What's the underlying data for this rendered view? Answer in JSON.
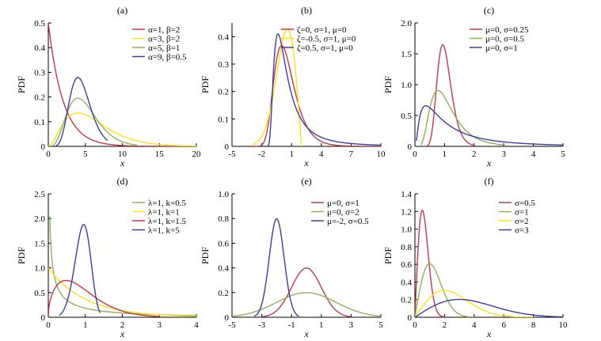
{
  "figure": {
    "ylabel": "PDF",
    "xlabel": "x"
  },
  "chart_data": [
    {
      "panel": "(a)",
      "type": "line",
      "xlabel": "x",
      "ylabel": "PDF",
      "xlim": [
        0,
        20
      ],
      "ylim": [
        0,
        0.5
      ],
      "xticks": [
        "0",
        "5",
        "10",
        "15",
        "20"
      ],
      "yticks": [
        "0",
        "0.1",
        "0.2",
        "0.3",
        "0.4",
        "0.5"
      ],
      "legend_position": "top-right",
      "series": [
        {
          "name": "α=1, β=2",
          "color": "#c0394b",
          "dist": "gamma",
          "params": [
            1,
            2
          ],
          "x": [
            0,
            1,
            2,
            4,
            6,
            8,
            10,
            15,
            20
          ],
          "y": [
            0.5,
            0.303,
            0.184,
            0.068,
            0.025,
            0.009,
            0.003,
            0.0003,
            2e-05
          ]
        },
        {
          "name": "α=3, β=2",
          "color": "#ffe01a",
          "dist": "gamma",
          "params": [
            3,
            2
          ],
          "x": [
            0,
            2,
            4,
            6,
            8,
            10,
            12,
            15,
            20
          ],
          "y": [
            0,
            0.092,
            0.135,
            0.112,
            0.073,
            0.042,
            0.022,
            0.008,
            0.001
          ]
        },
        {
          "name": "α=5, β=1",
          "color": "#8bb35a",
          "dist": "gamma",
          "params": [
            5,
            1
          ],
          "x": [
            0,
            1,
            2,
            3,
            4,
            5,
            6,
            8,
            10,
            12
          ],
          "y": [
            0,
            0.015,
            0.09,
            0.168,
            0.195,
            0.175,
            0.134,
            0.057,
            0.019,
            0.005
          ]
        },
        {
          "name": "α=9, β=0.5",
          "color": "#3b3f9e",
          "dist": "gamma",
          "params": [
            9,
            0.5
          ],
          "x": [
            1,
            2,
            3,
            4,
            5,
            6,
            7,
            8
          ],
          "y": [
            0.001,
            0.042,
            0.189,
            0.279,
            0.219,
            0.107,
            0.038,
            0.011
          ]
        }
      ]
    },
    {
      "panel": "(b)",
      "type": "line",
      "xlabel": "x",
      "ylabel": "PDF",
      "xlim": [
        -5,
        10
      ],
      "ylim": [
        0,
        0.45
      ],
      "xticks": [
        "-5",
        "-2",
        "1",
        "4",
        "7",
        "10"
      ],
      "yticks": [
        "0",
        "0.1",
        "0.2",
        "0.3",
        "0.4"
      ],
      "legend_position": "top-right",
      "series": [
        {
          "name": "ζ=0, σ=1, μ=0",
          "color": "#c0394b",
          "dist": "gev",
          "params": [
            0,
            1,
            0
          ],
          "x": [
            -3,
            -2,
            -1,
            0,
            1,
            2,
            4,
            7,
            10
          ],
          "y": [
            0,
            0.005,
            0.179,
            0.368,
            0.255,
            0.118,
            0.018,
            0.001,
            5e-05
          ]
        },
        {
          "name": "ζ=-0.5, σ=1, μ=0",
          "color": "#ffe01a",
          "dist": "gev",
          "params": [
            -0.5,
            1,
            0
          ],
          "x": [
            -3,
            -2,
            -1,
            0,
            0.5,
            1,
            1.5,
            1.9,
            2
          ],
          "y": [
            0.003,
            0.054,
            0.25,
            0.368,
            0.42,
            0.389,
            0.235,
            0.033,
            0
          ]
        },
        {
          "name": "ζ=0.5, σ=1, μ=0",
          "color": "#3b3f9e",
          "dist": "gev",
          "params": [
            0.5,
            1,
            0
          ],
          "x": [
            -2,
            -1.5,
            -1,
            -0.5,
            0,
            1,
            2,
            4,
            7,
            10
          ],
          "y": [
            0,
            0.001,
            0.147,
            0.41,
            0.368,
            0.178,
            0.088,
            0.028,
            0.008,
            0.003
          ]
        }
      ]
    },
    {
      "panel": "(c)",
      "type": "line",
      "xlabel": "x",
      "ylabel": "PDF",
      "xlim": [
        0,
        5
      ],
      "ylim": [
        0,
        2.0
      ],
      "xticks": [
        "0",
        "1",
        "2",
        "3",
        "4",
        "5"
      ],
      "yticks": [
        "0",
        "0.5",
        "1.0",
        "1.5",
        "2.0"
      ],
      "legend_position": "top-right",
      "series": [
        {
          "name": "μ=0, σ=0.25",
          "color": "#c0394b",
          "dist": "lognormal",
          "params": [
            0,
            0.25
          ],
          "x": [
            0.4,
            0.6,
            0.8,
            0.94,
            1.0,
            1.2,
            1.4,
            1.6,
            2.0
          ],
          "y": [
            0.001,
            0.228,
            1.233,
            1.648,
            1.596,
            0.888,
            0.352,
            0.122,
            0.009
          ]
        },
        {
          "name": "μ=0, σ=0.5",
          "color": "#8bb35a",
          "dist": "lognormal",
          "params": [
            0,
            0.5
          ],
          "x": [
            0.2,
            0.4,
            0.6,
            0.78,
            1.0,
            1.5,
            2.0,
            2.5,
            3.0
          ],
          "y": [
            0.066,
            0.561,
            0.883,
            0.908,
            0.798,
            0.386,
            0.154,
            0.057,
            0.021
          ]
        },
        {
          "name": "μ=0, σ=1",
          "color": "#3b3f9e",
          "dist": "lognormal",
          "params": [
            0,
            1
          ],
          "x": [
            0.05,
            0.1,
            0.2,
            0.37,
            0.6,
            1.0,
            1.5,
            2.0,
            3.0,
            4.0,
            5.0
          ],
          "y": [
            0.072,
            0.28,
            0.546,
            0.657,
            0.585,
            0.399,
            0.245,
            0.157,
            0.073,
            0.038,
            0.022
          ]
        }
      ]
    },
    {
      "panel": "(d)",
      "type": "line",
      "xlabel": "x",
      "ylabel": "PDF",
      "xlim": [
        0,
        4
      ],
      "ylim": [
        0,
        2.5
      ],
      "xticks": [
        "0",
        "1",
        "2",
        "3",
        "4"
      ],
      "yticks": [
        "0",
        "0.5",
        "1.0",
        "1.5",
        "2.0",
        "2.5"
      ],
      "legend_position": "top-right",
      "series": [
        {
          "name": "λ=1, k=0.5",
          "color": "#8bb35a",
          "dist": "weibull",
          "params": [
            1,
            0.5
          ],
          "x": [
            0.04,
            0.1,
            0.2,
            0.5,
            1,
            2,
            3,
            4
          ],
          "y": [
            2.04,
            1.15,
            0.71,
            0.35,
            0.18,
            0.086,
            0.051,
            0.034
          ]
        },
        {
          "name": "λ=1, k=1",
          "color": "#ffe01a",
          "dist": "weibull",
          "params": [
            1,
            1
          ],
          "x": [
            0,
            0.5,
            1,
            2,
            3,
            4
          ],
          "y": [
            1.0,
            0.607,
            0.368,
            0.135,
            0.05,
            0.018
          ]
        },
        {
          "name": "λ=1, k=1.5",
          "color": "#c0394b",
          "dist": "weibull",
          "params": [
            1,
            1.5
          ],
          "x": [
            0,
            0.2,
            0.5,
            1,
            1.5,
            2,
            2.5,
            3
          ],
          "y": [
            0,
            0.615,
            0.744,
            0.552,
            0.29,
            0.124,
            0.045,
            0.014
          ]
        },
        {
          "name": "λ=1, k=5",
          "color": "#3b3f9e",
          "dist": "weibull",
          "params": [
            1,
            5
          ],
          "x": [
            0.3,
            0.5,
            0.7,
            0.9,
            0.97,
            1.0,
            1.1,
            1.2,
            1.3,
            1.4
          ],
          "y": [
            0.04,
            0.3,
            1.0,
            1.7,
            1.86,
            1.84,
            1.36,
            0.59,
            0.1,
            0.004
          ]
        }
      ]
    },
    {
      "panel": "(e)",
      "type": "line",
      "xlabel": "x",
      "ylabel": "PDF",
      "xlim": [
        -5,
        5
      ],
      "ylim": [
        0,
        1.0
      ],
      "xticks": [
        "-5",
        "-3",
        "-1",
        "1",
        "3",
        "5"
      ],
      "yticks": [
        "0",
        "0.2",
        "0.4",
        "0.6",
        "0.8",
        "1.0"
      ],
      "legend_position": "top-right",
      "series": [
        {
          "name": "μ=0, σ=1",
          "color": "#c0394b",
          "dist": "normal",
          "params": [
            0,
            1
          ],
          "x": [
            -3,
            -2,
            -1,
            0,
            1,
            2,
            3
          ],
          "y": [
            0.004,
            0.054,
            0.242,
            0.399,
            0.242,
            0.054,
            0.004
          ]
        },
        {
          "name": "μ=0, σ=2",
          "color": "#8bb35a",
          "dist": "normal",
          "params": [
            0,
            2
          ],
          "x": [
            -5,
            -3,
            -1,
            0,
            1,
            3,
            5
          ],
          "y": [
            0.009,
            0.065,
            0.176,
            0.199,
            0.176,
            0.065,
            0.009
          ]
        },
        {
          "name": "μ=-2, σ=0.5",
          "color": "#3b3f9e",
          "dist": "normal",
          "params": [
            -2,
            0.5
          ],
          "x": [
            -3.5,
            -3,
            -2.5,
            -2,
            -1.5,
            -1,
            -0.5
          ],
          "y": [
            0.009,
            0.108,
            0.484,
            0.798,
            0.484,
            0.108,
            0.009
          ]
        }
      ]
    },
    {
      "panel": "(f)",
      "type": "line",
      "xlabel": "x",
      "ylabel": "PDF",
      "xlim": [
        0,
        10
      ],
      "ylim": [
        0,
        1.4
      ],
      "xticks": [
        "0",
        "2",
        "4",
        "6",
        "8",
        "10"
      ],
      "yticks": [
        "0",
        "0.2",
        "0.4",
        "0.6",
        "0.8",
        "1.0",
        "1.2",
        "1.4"
      ],
      "legend_position": "top-right",
      "series": [
        {
          "name": "σ=0.5",
          "color": "#c0394b",
          "dist": "rayleigh",
          "params": [
            0.5
          ],
          "x": [
            0,
            0.25,
            0.5,
            0.75,
            1.0,
            1.5,
            2.0
          ],
          "y": [
            0,
            0.882,
            1.213,
            0.974,
            0.541,
            0.067,
            0.003
          ]
        },
        {
          "name": "σ=1",
          "color": "#8bb35a",
          "dist": "rayleigh",
          "params": [
            1
          ],
          "x": [
            0,
            0.5,
            1,
            1.5,
            2,
            3,
            4
          ],
          "y": [
            0,
            0.441,
            0.607,
            0.487,
            0.271,
            0.033,
            0.001
          ]
        },
        {
          "name": "σ=2",
          "color": "#ffe01a",
          "dist": "rayleigh",
          "params": [
            2
          ],
          "x": [
            0,
            1,
            2,
            3,
            4,
            6,
            8
          ],
          "y": [
            0,
            0.221,
            0.303,
            0.243,
            0.135,
            0.017,
            0.001
          ]
        },
        {
          "name": "σ=3",
          "color": "#3b3f9e",
          "dist": "rayleigh",
          "params": [
            3
          ],
          "x": [
            0,
            1,
            2,
            3,
            4,
            6,
            8,
            10
          ],
          "y": [
            0,
            0.105,
            0.178,
            0.202,
            0.183,
            0.09,
            0.026,
            0.004
          ]
        }
      ]
    }
  ]
}
